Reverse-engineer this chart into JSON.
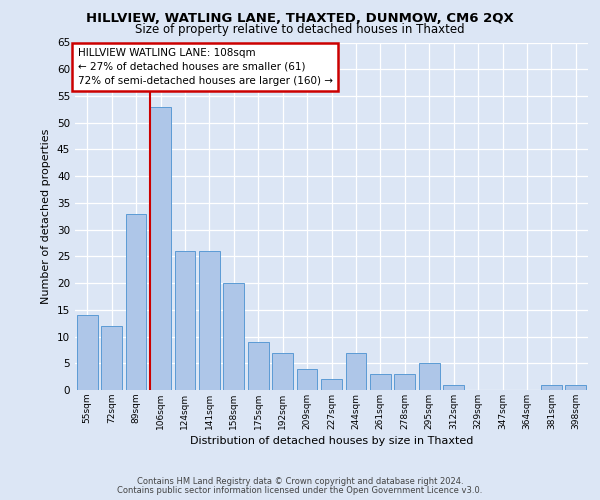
{
  "title1": "HILLVIEW, WATLING LANE, THAXTED, DUNMOW, CM6 2QX",
  "title2": "Size of property relative to detached houses in Thaxted",
  "xlabel": "Distribution of detached houses by size in Thaxted",
  "ylabel": "Number of detached properties",
  "categories": [
    "55sqm",
    "72sqm",
    "89sqm",
    "106sqm",
    "124sqm",
    "141sqm",
    "158sqm",
    "175sqm",
    "192sqm",
    "209sqm",
    "227sqm",
    "244sqm",
    "261sqm",
    "278sqm",
    "295sqm",
    "312sqm",
    "329sqm",
    "347sqm",
    "364sqm",
    "381sqm",
    "398sqm"
  ],
  "values": [
    14,
    12,
    33,
    53,
    26,
    26,
    20,
    9,
    7,
    4,
    2,
    7,
    3,
    3,
    5,
    1,
    0,
    0,
    0,
    1,
    1
  ],
  "bar_color": "#aec6e8",
  "bar_edge_color": "#5b9bd5",
  "highlight_index": 3,
  "highlight_line_color": "#cc0000",
  "annotation_text": "HILLVIEW WATLING LANE: 108sqm\n← 27% of detached houses are smaller (61)\n72% of semi-detached houses are larger (160) →",
  "annotation_box_color": "#ffffff",
  "annotation_box_edge_color": "#cc0000",
  "ylim": [
    0,
    65
  ],
  "yticks": [
    0,
    5,
    10,
    15,
    20,
    25,
    30,
    35,
    40,
    45,
    50,
    55,
    60,
    65
  ],
  "footer_line1": "Contains HM Land Registry data © Crown copyright and database right 2024.",
  "footer_line2": "Contains public sector information licensed under the Open Government Licence v3.0.",
  "bg_color": "#dce6f5",
  "plot_bg_color": "#dce6f5"
}
